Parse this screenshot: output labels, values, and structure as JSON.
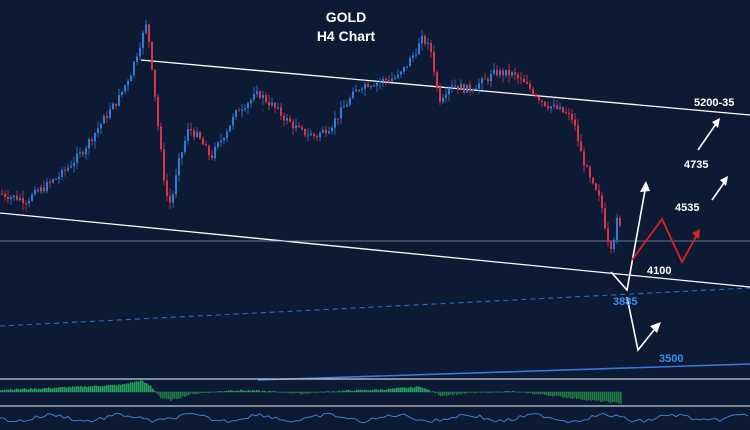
{
  "chart_data": {
    "type": "candlestick",
    "title": "GOLD",
    "subtitle": "H4 Chart",
    "xlabel": "",
    "ylabel": "",
    "grid": false,
    "ylim": [
      3320,
      5340
    ],
    "colors": {
      "background": "#0c1a33",
      "bull": "#2e7bd9",
      "bear": "#d8354d",
      "channel": "#ffffff",
      "dashed_line": "#2c68c8",
      "support_line": "#3a78e0",
      "macd_bull": "#23a35a",
      "macd_bear": "#1f7a44",
      "projection_white": "#ffffff",
      "projection_red": "#e02020",
      "blue_label": "#3f8df0",
      "white_label": "#ffffff"
    },
    "levels": [
      {
        "label": "5200-35",
        "value": 5215,
        "color": "white"
      },
      {
        "label": "4735",
        "value": 4735,
        "color": "white"
      },
      {
        "label": "4535",
        "value": 4535,
        "color": "white"
      },
      {
        "label": "4100",
        "value": 4100,
        "color": "white"
      },
      {
        "label": "3885",
        "value": 3885,
        "color": "blue"
      },
      {
        "label": "3500",
        "value": 3500,
        "color": "blue"
      }
    ],
    "price_anchors": [
      {
        "x": 0,
        "y": 4430
      },
      {
        "x": 25,
        "y": 4400
      },
      {
        "x": 42,
        "y": 4455
      },
      {
        "x": 60,
        "y": 4520
      },
      {
        "x": 80,
        "y": 4620
      },
      {
        "x": 100,
        "y": 4760
      },
      {
        "x": 118,
        "y": 4880
      },
      {
        "x": 130,
        "y": 5000
      },
      {
        "x": 140,
        "y": 5150
      },
      {
        "x": 146,
        "y": 5230
      },
      {
        "x": 152,
        "y": 4990
      },
      {
        "x": 158,
        "y": 4700
      },
      {
        "x": 165,
        "y": 4430
      },
      {
        "x": 170,
        "y": 4380
      },
      {
        "x": 178,
        "y": 4580
      },
      {
        "x": 188,
        "y": 4740
      },
      {
        "x": 198,
        "y": 4690
      },
      {
        "x": 210,
        "y": 4600
      },
      {
        "x": 222,
        "y": 4700
      },
      {
        "x": 238,
        "y": 4830
      },
      {
        "x": 258,
        "y": 4900
      },
      {
        "x": 270,
        "y": 4850
      },
      {
        "x": 285,
        "y": 4780
      },
      {
        "x": 300,
        "y": 4720
      },
      {
        "x": 315,
        "y": 4700
      },
      {
        "x": 330,
        "y": 4750
      },
      {
        "x": 345,
        "y": 4850
      },
      {
        "x": 360,
        "y": 4940
      },
      {
        "x": 380,
        "y": 4960
      },
      {
        "x": 398,
        "y": 4980
      },
      {
        "x": 412,
        "y": 5080
      },
      {
        "x": 422,
        "y": 5160
      },
      {
        "x": 430,
        "y": 5100
      },
      {
        "x": 438,
        "y": 4870
      },
      {
        "x": 450,
        "y": 4950
      },
      {
        "x": 465,
        "y": 4920
      },
      {
        "x": 480,
        "y": 4950
      },
      {
        "x": 495,
        "y": 5000
      },
      {
        "x": 512,
        "y": 4990
      },
      {
        "x": 530,
        "y": 4920
      },
      {
        "x": 545,
        "y": 4850
      },
      {
        "x": 560,
        "y": 4820
      },
      {
        "x": 572,
        "y": 4780
      },
      {
        "x": 580,
        "y": 4620
      },
      {
        "x": 590,
        "y": 4480
      },
      {
        "x": 600,
        "y": 4390
      },
      {
        "x": 606,
        "y": 4230
      },
      {
        "x": 611,
        "y": 4180
      },
      {
        "x": 616,
        "y": 4300
      },
      {
        "x": 621,
        "y": 4250
      }
    ],
    "macd_anchors": [
      {
        "x": 0,
        "y": 0.2
      },
      {
        "x": 40,
        "y": 0.3
      },
      {
        "x": 80,
        "y": 0.45
      },
      {
        "x": 120,
        "y": 0.6
      },
      {
        "x": 140,
        "y": 0.95
      },
      {
        "x": 150,
        "y": 0.5
      },
      {
        "x": 160,
        "y": -0.5
      },
      {
        "x": 170,
        "y": -0.7
      },
      {
        "x": 190,
        "y": -0.2
      },
      {
        "x": 230,
        "y": 0.15
      },
      {
        "x": 260,
        "y": 0.1
      },
      {
        "x": 300,
        "y": -0.15
      },
      {
        "x": 340,
        "y": 0.1
      },
      {
        "x": 380,
        "y": 0.2
      },
      {
        "x": 420,
        "y": 0.45
      },
      {
        "x": 440,
        "y": -0.3
      },
      {
        "x": 470,
        "y": -0.1
      },
      {
        "x": 510,
        "y": 0.05
      },
      {
        "x": 550,
        "y": -0.3
      },
      {
        "x": 590,
        "y": -0.7
      },
      {
        "x": 621,
        "y": -0.95
      }
    ]
  }
}
